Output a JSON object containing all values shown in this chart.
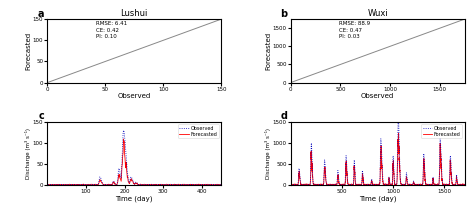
{
  "title_a": "Lushui",
  "title_b": "Wuxi",
  "label_a": "a",
  "label_b": "b",
  "label_c": "c",
  "label_d": "d",
  "scatter_a": {
    "xlim": [
      0,
      150
    ],
    "ylim": [
      0,
      150
    ],
    "xlabel": "Observed",
    "ylabel": "Forecasted",
    "stats": "RMSE: 6.41\nCE: 0.42\nPI: 0.10",
    "point_color": "#0000bb",
    "point_size": 2,
    "line_color": "#888888"
  },
  "scatter_b": {
    "xlim": [
      0,
      1750
    ],
    "ylim": [
      0,
      1750
    ],
    "xlabel": "Observed",
    "ylabel": "Forecasted",
    "stats": "RMSE: 88.9\nCE: 0.47\nPI: 0.03",
    "point_color": "#0000bb",
    "point_size": 2,
    "line_color": "#888888"
  },
  "hydro_c": {
    "xlim": [
      0,
      450
    ],
    "ylim": [
      0,
      150
    ],
    "xlabel": "Time (day)",
    "ylabel": "Discharge (m³ s⁻¹)",
    "obs_color": "#0000bb",
    "fcast_color": "#ff0000",
    "legend_obs": "Observed",
    "legend_fcast": "Forecasted",
    "xticks": [
      100,
      200,
      300,
      400
    ],
    "yticks": [
      0,
      50,
      100,
      150
    ]
  },
  "hydro_d": {
    "xlim": [
      0,
      1700
    ],
    "ylim": [
      0,
      1500
    ],
    "xlabel": "Time (day)",
    "ylabel": "Discharge (m³ s⁻¹)",
    "obs_color": "#0000bb",
    "fcast_color": "#ff0000",
    "legend_obs": "Observed",
    "legend_fcast": "Forecasted",
    "xticks": [
      500,
      1000,
      1500
    ],
    "yticks": [
      0,
      500,
      1000,
      1500
    ]
  }
}
